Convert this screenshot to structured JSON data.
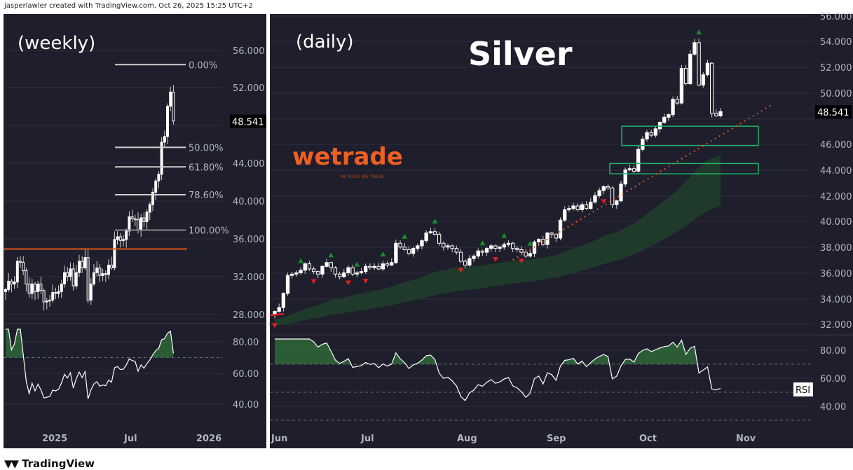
{
  "header": {
    "attribution": "jasperlawler created with TradingView.com, Oct 26, 2025 15:25 UTC+2"
  },
  "footer": {
    "brand": "TradingView",
    "logo_icon": "tradingview-logo-icon"
  },
  "annotations": {
    "weekly_label": "(weekly)",
    "daily_label": "(daily)",
    "title": "Silver",
    "logo_text": "wetrade",
    "logo_tagline": "IN TRUST WE TRADE",
    "rsi_tag": "RSI"
  },
  "colors": {
    "background": "#1e1e2c",
    "candle_up": "#ffffff",
    "accent_orange": "#e0561a",
    "zone_green": "#1fb365",
    "signal_up": "#1b8a2a",
    "signal_down": "#e01e1e",
    "cloud": "#1f3d2a"
  },
  "chart_data": [
    {
      "type": "candlestick",
      "title": "(weekly)",
      "last_price": "48.541",
      "y_ticks": [
        "56.000",
        "52.000",
        "48.000",
        "44.000",
        "40.000",
        "36.000",
        "32.000",
        "28.000"
      ],
      "x_ticks": [
        "2025",
        "Jul",
        "2026"
      ],
      "closes": [
        30.7,
        31.6,
        31.3,
        31.5,
        33.7,
        33.6,
        32.7,
        31.3,
        30.3,
        31.3,
        30.5,
        31.3,
        30.6,
        29.4,
        29.5,
        29.6,
        30.4,
        30.3,
        30.5,
        31.3,
        32.5,
        32.1,
        32.9,
        31.1,
        32.5,
        33.7,
        33.0,
        34.1,
        29.6,
        31.3,
        32.5,
        33.0,
        32.2,
        32.4,
        32.3,
        33.3,
        33.0,
        36.0,
        36.3,
        35.9,
        36.0,
        36.9,
        38.4,
        38.2,
        38.1,
        37.0,
        38.3,
        37.9,
        38.9,
        39.7,
        41.0,
        42.2,
        42.9,
        46.3,
        46.9,
        50.1,
        51.6,
        48.541
      ],
      "fibonacci": {
        "high": 54.5,
        "low": 37.0,
        "levels": [
          {
            "ratio": 0,
            "label": "0.00%"
          },
          {
            "ratio": 0.5,
            "label": "50.00%"
          },
          {
            "ratio": 0.618,
            "label": "61.80%"
          },
          {
            "ratio": 0.786,
            "label": "78.60%"
          },
          {
            "ratio": 1,
            "label": "100.00%"
          }
        ]
      },
      "horizontal_line": 35.0,
      "rsi": {
        "y_ticks": [
          "80.00",
          "60.00",
          "40.00"
        ],
        "overbought": 70
      }
    },
    {
      "type": "candlestick",
      "title": "(daily)",
      "last_price": "48.541",
      "y_ticks": [
        "56.000",
        "54.000",
        "52.000",
        "50.000",
        "48.000",
        "46.000",
        "44.000",
        "42.000",
        "40.000",
        "38.000",
        "36.000",
        "34.000",
        "32.000"
      ],
      "x_ticks": [
        "Jun",
        "Jul",
        "Aug",
        "Sep",
        "Oct",
        "Nov"
      ],
      "closes": [
        33.0,
        33.3,
        34.4,
        35.8,
        35.9,
        36.0,
        36.2,
        36.7,
        36.3,
        36.1,
        35.9,
        36.5,
        36.8,
        36.4,
        35.9,
        35.7,
        36.0,
        36.4,
        35.9,
        36.0,
        36.1,
        36.5,
        36.4,
        36.5,
        36.3,
        36.7,
        36.6,
        36.8,
        38.3,
        38.0,
        37.8,
        37.5,
        37.9,
        38.1,
        38.5,
        39.1,
        39.2,
        39.0,
        38.3,
        38.0,
        38.1,
        37.9,
        37.6,
        36.9,
        36.6,
        37.1,
        37.3,
        37.7,
        37.6,
        37.9,
        38.1,
        37.9,
        38.0,
        38.2,
        38.3,
        37.9,
        37.8,
        37.6,
        37.3,
        37.5,
        38.4,
        38.6,
        38.2,
        39.1,
        39.0,
        38.7,
        40.1,
        40.9,
        41.0,
        41.2,
        40.9,
        41.3,
        41.0,
        41.5,
        42.0,
        42.4,
        42.7,
        42.6,
        41.3,
        41.6,
        42.9,
        44.0,
        44.1,
        43.9,
        45.6,
        46.4,
        46.9,
        46.7,
        47.2,
        47.7,
        48.1,
        48.3,
        49.5,
        49.2,
        51.9,
        50.7,
        53.0,
        53.9,
        50.6,
        51.4,
        52.3,
        48.4,
        48.2,
        48.541
      ],
      "signals_up": [
        6,
        13,
        19,
        25,
        30,
        37,
        48,
        53,
        59,
        98
      ],
      "signals_down": [
        0,
        9,
        17,
        21,
        43,
        51,
        57,
        76
      ],
      "support_zones": [
        [
          45.9,
          47.4
        ],
        [
          43.7,
          44.5
        ]
      ],
      "trendline": {
        "from_index": 55,
        "from_price": 37.0,
        "to_index": 115,
        "to_price": 49.1
      },
      "rsi": {
        "y_ticks": [
          "80.00",
          "60.00",
          "40.00"
        ],
        "overbought": 70,
        "mid": 50,
        "oversold": 30
      }
    }
  ]
}
